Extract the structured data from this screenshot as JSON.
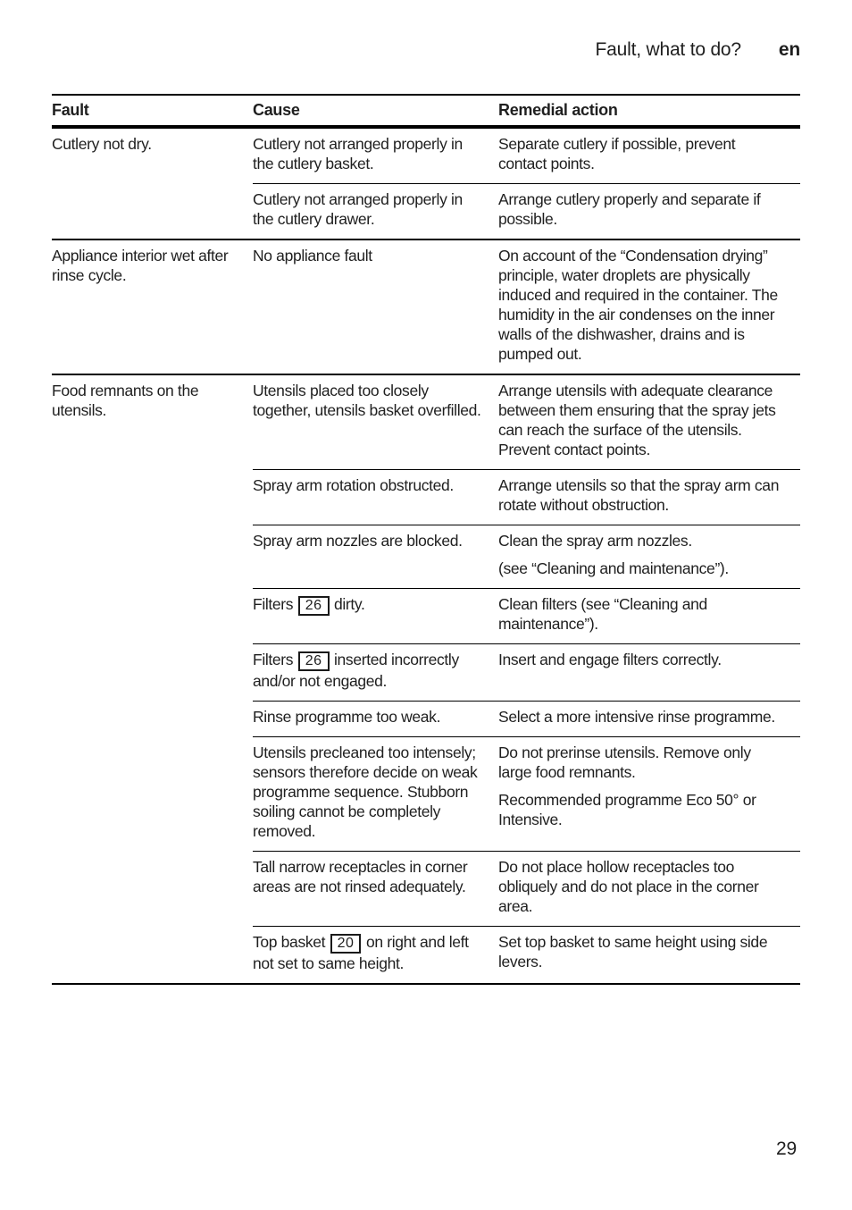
{
  "page": {
    "header": {
      "title": "Fault, what to do?",
      "lang": "en"
    },
    "page_number": "29"
  },
  "table": {
    "columns": [
      "Fault",
      "Cause",
      "Remedial action"
    ],
    "groups": [
      {
        "fault": "Cutlery not dry.",
        "rows": [
          {
            "cause": [
              [
                "Cutlery not arranged properly in the cutlery basket."
              ]
            ],
            "remedy": [
              [
                "Separate cutlery if possible, prevent contact points."
              ]
            ]
          },
          {
            "cause": [
              [
                "Cutlery not arranged properly in the cutlery drawer."
              ]
            ],
            "remedy": [
              [
                "Arrange cutlery properly and separate if possible."
              ]
            ]
          }
        ]
      },
      {
        "fault": "Appliance interior wet after rinse cycle.",
        "rows": [
          {
            "cause": [
              [
                "No appliance fault"
              ]
            ],
            "remedy": [
              [
                "On account of the “Condensation drying” principle, water droplets are physically induced and required in the container. The humidity in the air condenses on the inner walls of the dishwasher, drains and is pumped out."
              ]
            ]
          }
        ]
      },
      {
        "fault": "Food remnants on the utensils.",
        "rows": [
          {
            "cause": [
              [
                "Utensils placed too closely together, utensils basket overfilled."
              ]
            ],
            "remedy": [
              [
                "Arrange utensils with adequate clearance between them ensuring that the spray jets can reach the surface of the utensils. Prevent contact points."
              ]
            ]
          },
          {
            "cause": [
              [
                "Spray arm rotation obstructed."
              ]
            ],
            "remedy": [
              [
                "Arrange utensils so that the spray arm can rotate without obstruction."
              ]
            ]
          },
          {
            "cause": [
              [
                "Spray arm nozzles are blocked."
              ]
            ],
            "remedy": [
              [
                "Clean the spray arm nozzles."
              ],
              [
                "(see “Cleaning and maintenance”)."
              ]
            ]
          },
          {
            "cause": [
              [
                "Filters ",
                {
                  "box": "26"
                },
                " dirty."
              ]
            ],
            "remedy": [
              [
                "Clean filters (see “Cleaning and maintenance”)."
              ]
            ]
          },
          {
            "cause": [
              [
                "Filters ",
                {
                  "box": "26"
                },
                " inserted incorrectly and/or not engaged."
              ]
            ],
            "remedy": [
              [
                "Insert and engage filters correctly."
              ]
            ]
          },
          {
            "cause": [
              [
                "Rinse programme too weak."
              ]
            ],
            "remedy": [
              [
                "Select a more intensive rinse programme."
              ]
            ]
          },
          {
            "cause": [
              [
                "Utensils precleaned too intensely; sensors therefore decide on weak programme sequence. Stubborn soiling cannot be completely removed."
              ]
            ],
            "remedy": [
              [
                "Do not prerinse utensils. Remove only large food remnants."
              ],
              [
                "Recommended programme Eco 50° or Intensive."
              ]
            ]
          },
          {
            "cause": [
              [
                "Tall narrow receptacles in corner areas are not rinsed adequately."
              ]
            ],
            "remedy": [
              [
                "Do not place hollow receptacles too obliquely and do not place in the corner area."
              ]
            ]
          },
          {
            "cause": [
              [
                "Top basket ",
                {
                  "box": "20"
                },
                " on right and left not set to same height."
              ]
            ],
            "remedy": [
              [
                "Set top basket to same height using side levers."
              ]
            ]
          }
        ]
      }
    ]
  }
}
